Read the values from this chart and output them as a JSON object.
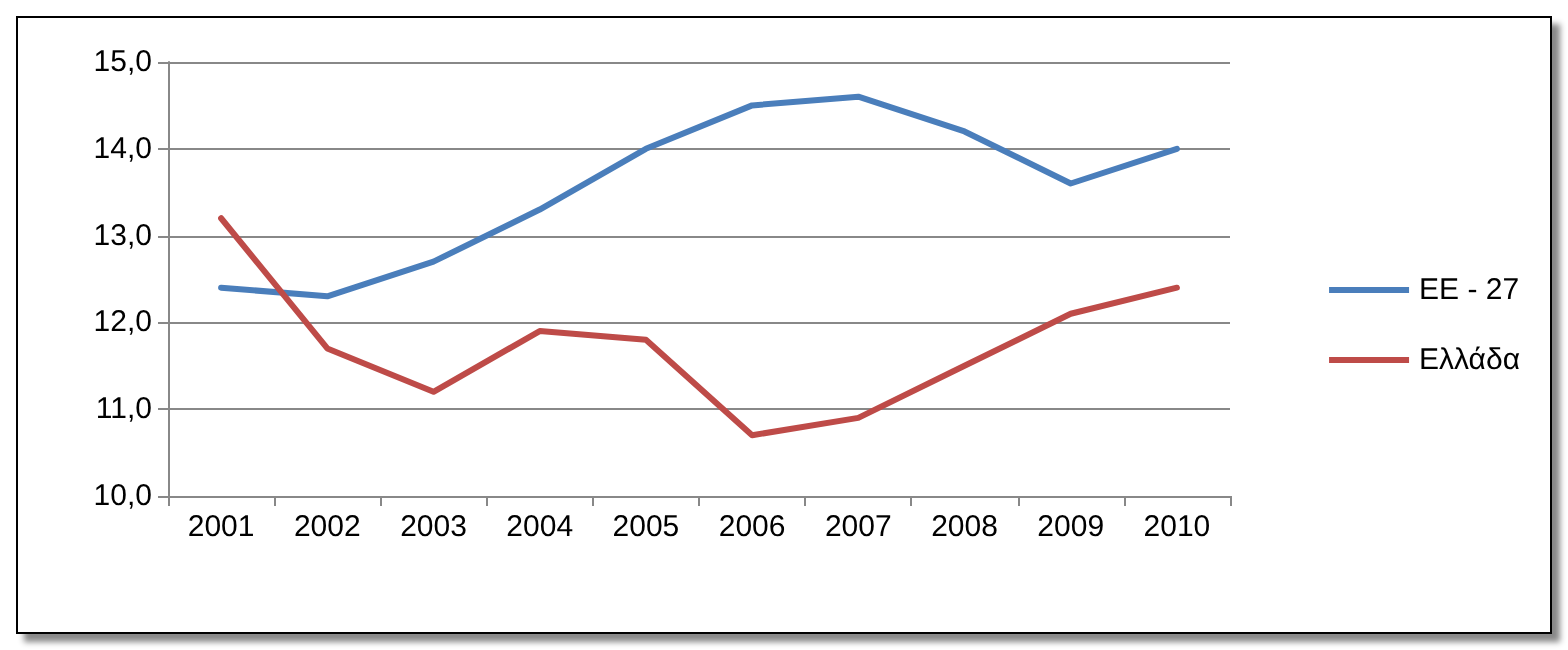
{
  "chart_data": {
    "type": "line",
    "categories": [
      "2001",
      "2002",
      "2003",
      "2004",
      "2005",
      "2006",
      "2007",
      "2008",
      "2009",
      "2010"
    ],
    "series": [
      {
        "name": "ΕΕ - 27",
        "color": "#4a7ebb",
        "values": [
          12.4,
          12.3,
          12.7,
          13.3,
          14.0,
          14.5,
          14.6,
          14.2,
          13.6,
          14.0
        ]
      },
      {
        "name": "Ελλάδα",
        "color": "#be4b48",
        "values": [
          13.2,
          11.7,
          11.2,
          11.9,
          11.8,
          10.7,
          10.9,
          11.5,
          12.1,
          12.4
        ]
      }
    ],
    "ylim": [
      10,
      15
    ],
    "yticks": [
      {
        "value": 10,
        "label": "10,0"
      },
      {
        "value": 11,
        "label": "11,0"
      },
      {
        "value": 12,
        "label": "12,0"
      },
      {
        "value": 13,
        "label": "13,0"
      },
      {
        "value": 14,
        "label": "14,0"
      },
      {
        "value": 15,
        "label": "15,0"
      }
    ],
    "grid": "y",
    "legend": "right",
    "marker": "none",
    "line_style": "solid"
  }
}
